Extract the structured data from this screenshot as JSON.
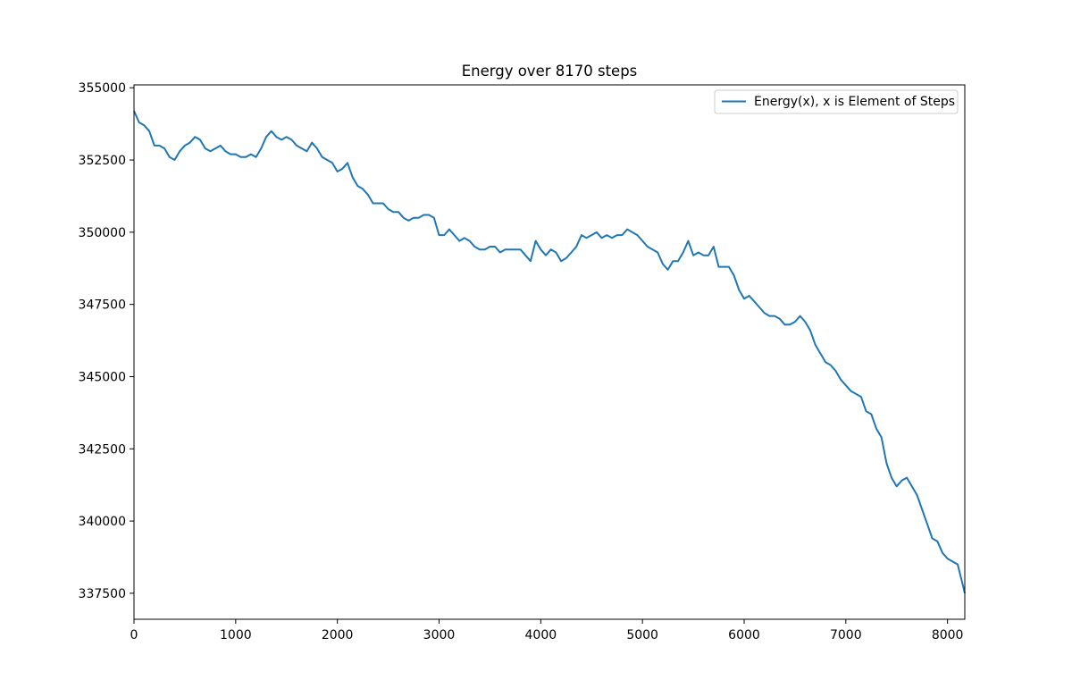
{
  "chart_data": {
    "type": "line",
    "title": "Energy over  8170 steps",
    "xlabel": "",
    "ylabel": "",
    "xlim": [
      0,
      8170
    ],
    "ylim": [
      336600,
      355100
    ],
    "x_ticks": [
      0,
      1000,
      2000,
      3000,
      4000,
      5000,
      6000,
      7000,
      8000
    ],
    "y_ticks": [
      337500,
      340000,
      342500,
      345000,
      347500,
      350000,
      352500,
      355000
    ],
    "grid": false,
    "legend": "top-right",
    "colors": {
      "series": "#1f77b4",
      "axes": "#000000",
      "background": "#ffffff"
    },
    "series": [
      {
        "name": "Energy(x), x is Element of Steps",
        "x": [
          0,
          50,
          100,
          150,
          200,
          250,
          300,
          350,
          400,
          450,
          500,
          550,
          600,
          650,
          700,
          750,
          800,
          850,
          900,
          950,
          1000,
          1050,
          1100,
          1150,
          1200,
          1250,
          1300,
          1350,
          1400,
          1450,
          1500,
          1550,
          1600,
          1650,
          1700,
          1750,
          1800,
          1850,
          1900,
          1950,
          2000,
          2050,
          2100,
          2150,
          2200,
          2250,
          2300,
          2350,
          2400,
          2450,
          2500,
          2550,
          2600,
          2650,
          2700,
          2750,
          2800,
          2850,
          2900,
          2950,
          3000,
          3050,
          3100,
          3150,
          3200,
          3250,
          3300,
          3350,
          3400,
          3450,
          3500,
          3550,
          3600,
          3650,
          3700,
          3750,
          3800,
          3850,
          3900,
          3950,
          4000,
          4050,
          4100,
          4150,
          4200,
          4250,
          4300,
          4350,
          4400,
          4450,
          4500,
          4550,
          4600,
          4650,
          4700,
          4750,
          4800,
          4850,
          4900,
          4950,
          5000,
          5050,
          5100,
          5150,
          5200,
          5250,
          5300,
          5350,
          5400,
          5450,
          5500,
          5550,
          5600,
          5650,
          5700,
          5750,
          5800,
          5850,
          5900,
          5950,
          6000,
          6050,
          6100,
          6150,
          6200,
          6250,
          6300,
          6350,
          6400,
          6450,
          6500,
          6550,
          6600,
          6650,
          6700,
          6750,
          6800,
          6850,
          6900,
          6950,
          7000,
          7050,
          7100,
          7150,
          7200,
          7250,
          7300,
          7350,
          7400,
          7450,
          7500,
          7550,
          7600,
          7650,
          7700,
          7750,
          7800,
          7850,
          7900,
          7950,
          8000,
          8050,
          8100,
          8150,
          8170
        ],
        "values": [
          354200,
          353800,
          353700,
          353500,
          353000,
          353000,
          352900,
          352600,
          352500,
          352800,
          353000,
          353100,
          353300,
          353200,
          352900,
          352800,
          352900,
          353000,
          352800,
          352700,
          352700,
          352600,
          352600,
          352700,
          352600,
          352900,
          353300,
          353500,
          353300,
          353200,
          353300,
          353200,
          353000,
          352900,
          352800,
          353100,
          352900,
          352600,
          352500,
          352400,
          352100,
          352200,
          352400,
          351900,
          351600,
          351500,
          351300,
          351000,
          351000,
          351000,
          350800,
          350700,
          350700,
          350500,
          350400,
          350500,
          350500,
          350600,
          350600,
          350500,
          349900,
          349900,
          350100,
          349900,
          349700,
          349800,
          349700,
          349500,
          349400,
          349400,
          349500,
          349500,
          349300,
          349400,
          349400,
          349400,
          349400,
          349200,
          349000,
          349700,
          349400,
          349200,
          349400,
          349300,
          349000,
          349100,
          349300,
          349500,
          349900,
          349800,
          349900,
          350000,
          349800,
          349900,
          349800,
          349900,
          349900,
          350100,
          350000,
          349900,
          349700,
          349500,
          349400,
          349300,
          348900,
          348700,
          349000,
          349000,
          349300,
          349700,
          349200,
          349300,
          349200,
          349200,
          349500,
          348800,
          348800,
          348800,
          348500,
          348000,
          347700,
          347800,
          347600,
          347400,
          347200,
          347100,
          347100,
          347000,
          346800,
          346800,
          346900,
          347100,
          346900,
          346600,
          346100,
          345800,
          345500,
          345400,
          345200,
          344900,
          344700,
          344500,
          344400,
          344300,
          343800,
          343700,
          343200,
          342900,
          342000,
          341500,
          341200,
          341400,
          341500,
          341200,
          340900,
          340400,
          339900,
          339400,
          339300,
          338900,
          338700,
          338600,
          338500,
          337800,
          337500
        ]
      }
    ]
  }
}
